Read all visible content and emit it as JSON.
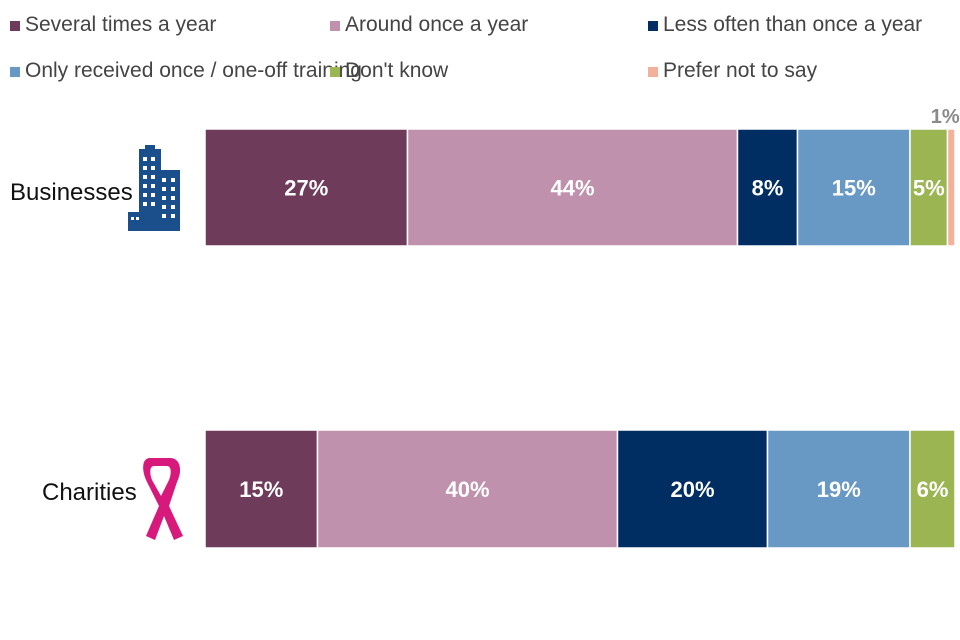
{
  "chart_data": {
    "type": "bar",
    "orientation": "horizontal",
    "stacked": true,
    "percent_stacked": true,
    "categories": [
      "Businesses",
      "Charities"
    ],
    "series": [
      {
        "name": "Several times a year",
        "color": "#6e3b5a",
        "values": [
          27,
          15
        ],
        "labels": [
          "27%",
          "15%"
        ]
      },
      {
        "name": "Around once a year",
        "color": "#c091ad",
        "values": [
          44,
          40
        ],
        "labels": [
          "44%",
          "40%"
        ]
      },
      {
        "name": "Less often than once a year",
        "color": "#002d62",
        "values": [
          8,
          20
        ],
        "labels": [
          "8%",
          "20%"
        ]
      },
      {
        "name": "Only received once / one-off training",
        "color": "#6898c4",
        "values": [
          15,
          19
        ],
        "labels": [
          "15%",
          "19%"
        ]
      },
      {
        "name": "Don't know",
        "color": "#9cb553",
        "values": [
          5,
          6
        ],
        "labels": [
          "5%",
          "6%"
        ]
      },
      {
        "name": "Prefer not to say",
        "color": "#f3b09a",
        "values": [
          1,
          0
        ],
        "labels": [
          "1%",
          ""
        ]
      }
    ],
    "xlim": [
      0,
      100
    ],
    "legend_position": "top",
    "grid": false,
    "category_icons": [
      "office-building-icon",
      "awareness-ribbon-icon"
    ],
    "icon_colors": {
      "office-building-icon": "#1b4f8c",
      "awareness-ribbon-icon": "#d6197a"
    }
  }
}
